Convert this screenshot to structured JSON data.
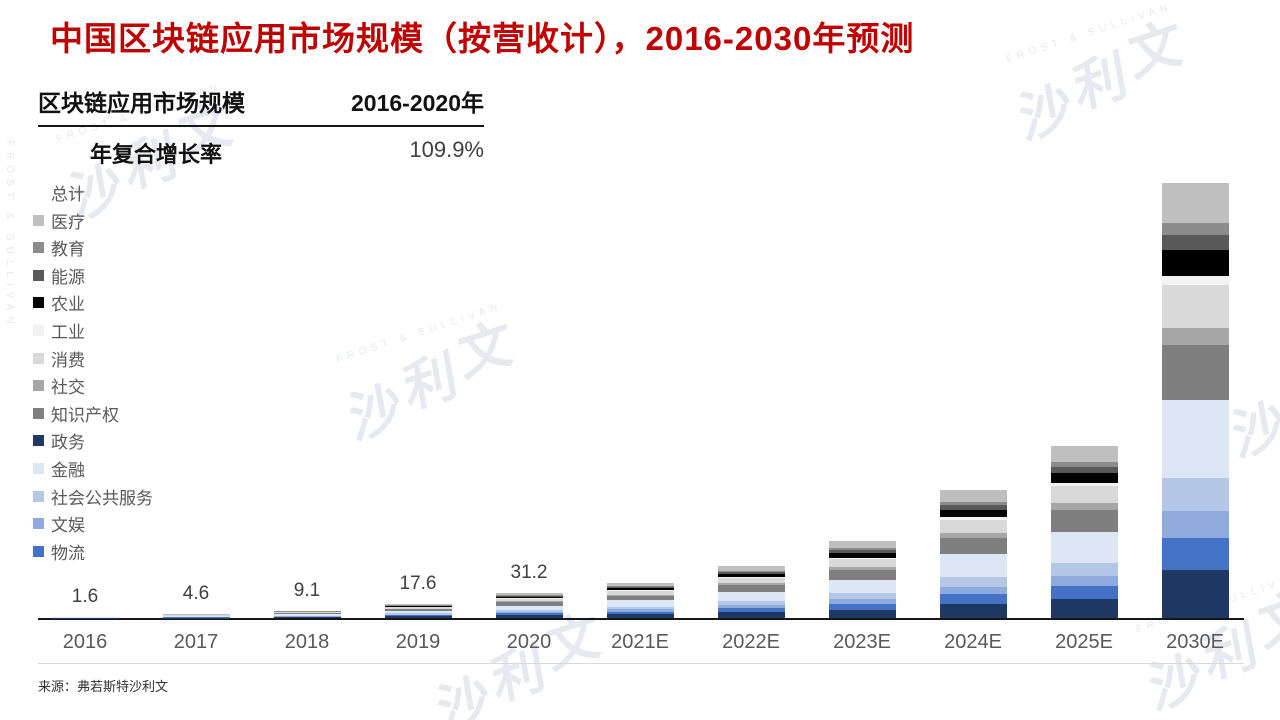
{
  "title": "中国区块链应用市场规模（按营收计），2016-2030年预测",
  "summary_table": {
    "header_left": "区块链应用市场规模",
    "header_right": "2016-2020年",
    "row_label": "年复合增长率",
    "row_value": "109.9%"
  },
  "source": "来源：弗若斯特沙利文",
  "watermark": {
    "logo_text": "沙利文",
    "sub_text": "FROST & SULLIVAN"
  },
  "colors": {
    "title_red": "#C00000",
    "axis": "#161616",
    "tick_label": "#595959",
    "data_label": "#404040",
    "rule": "#D9D9D9",
    "watermark": "#DEE3EC"
  },
  "chart_data": {
    "type": "bar",
    "stacked": true,
    "grid": false,
    "y_axis_shown": false,
    "legend_position": "left",
    "categories": [
      "2016",
      "2017",
      "2018",
      "2019",
      "2020",
      "2021E",
      "2022E",
      "2023E",
      "2024E",
      "2025E",
      "2030E"
    ],
    "totals": [
      1.6,
      4.6,
      9.1,
      17.6,
      31.2,
      44,
      65,
      96,
      160,
      215,
      544
    ],
    "totals_note": "2016-2020 totals are labeled on the chart; 2021E-2030E totals are unlabeled and estimated from bar heights",
    "data_labels": [
      "1.6",
      "4.6",
      "9.1",
      "17.6",
      "31.2",
      "",
      "",
      "",
      "",
      "",
      ""
    ],
    "series": [
      {
        "name": "总计",
        "color": "#FFFFFF",
        "share": 0
      },
      {
        "name": "医疗",
        "color": "#BFBFBF",
        "share": 0.092
      },
      {
        "name": "教育",
        "color": "#8C8C8C",
        "share": 0.0276
      },
      {
        "name": "能源",
        "color": "#595959",
        "share": 0.0345
      },
      {
        "name": "农业",
        "color": "#000000",
        "share": 0.0598
      },
      {
        "name": "工业",
        "color": "#F2F2F2",
        "share": 0.0207
      },
      {
        "name": "消费",
        "color": "#D9D9D9",
        "share": 0.0989
      },
      {
        "name": "社交",
        "color": "#A6A6A6",
        "share": 0.0391
      },
      {
        "name": "知识产权",
        "color": "#7F7F7F",
        "share": 0.1264
      },
      {
        "name": "政务",
        "color": "#203864",
        "share": 0.1103
      },
      {
        "name": "金融",
        "color": "#DCE6F5",
        "share": 0.1793
      },
      {
        "name": "社会公共服务",
        "color": "#B4C7E7",
        "share": 0.0759
      },
      {
        "name": "文娱",
        "color": "#8FAADC",
        "share": 0.0621
      },
      {
        "name": "物流",
        "color": "#4472C4",
        "share": 0.0736
      }
    ],
    "share_note": "per-series values are not labeled; shares estimated from measured band heights of the 2030E bar",
    "stack_order_top_to_bottom": [
      "医疗",
      "教育",
      "能源",
      "农业",
      "工业",
      "消费",
      "社交",
      "知识产权",
      "金融",
      "社会公共服务",
      "文娱",
      "物流",
      "政务"
    ]
  }
}
